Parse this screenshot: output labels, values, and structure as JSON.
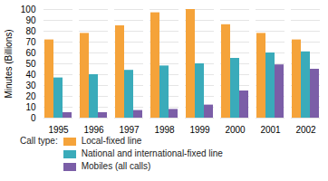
{
  "chart_data": {
    "type": "bar",
    "categories": [
      1995,
      1996,
      1997,
      1998,
      1999,
      2000,
      2001,
      2002
    ],
    "series": [
      {
        "name": "Local-fixed line",
        "color": "#f5a33a",
        "values": [
          72,
          78,
          85,
          97,
          100,
          86,
          78,
          72
        ]
      },
      {
        "name": "National and international-fixed line",
        "color": "#3aabba",
        "values": [
          37,
          40,
          44,
          48,
          50,
          55,
          60,
          61
        ]
      },
      {
        "name": "Mobiles (all calls)",
        "color": "#7b5ea7",
        "values": [
          5,
          5,
          7,
          8,
          12,
          25,
          49,
          45
        ]
      }
    ],
    "y_label": "Minutes (Billions)",
    "ylim": [
      0,
      100
    ],
    "yticks": [
      0,
      10,
      20,
      30,
      40,
      50,
      60,
      70,
      80,
      90,
      100
    ],
    "grid": true,
    "legend": "bottom",
    "legend_title": "Call type:"
  }
}
